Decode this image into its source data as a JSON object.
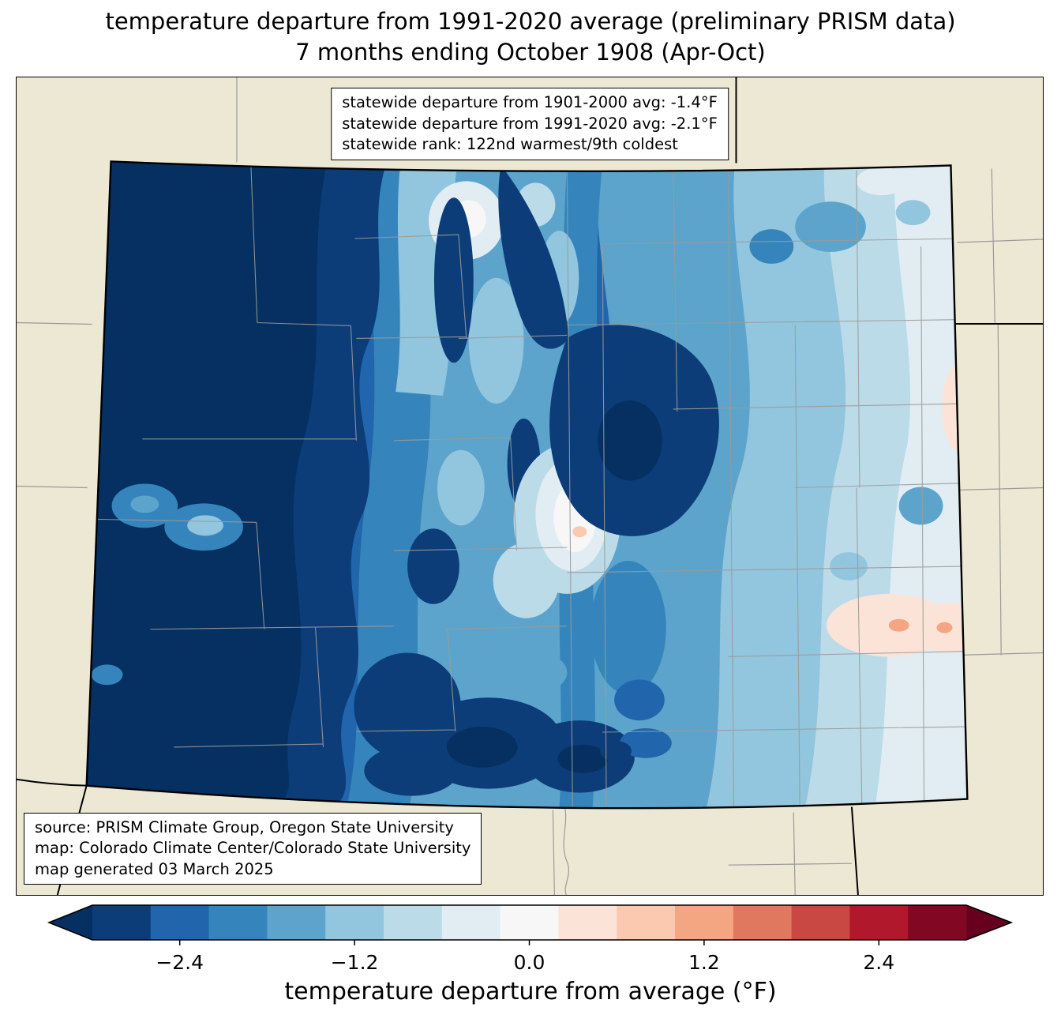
{
  "title": {
    "line1": "temperature departure from 1991-2020 average (preliminary PRISM data)",
    "line2": "7 months ending October 1908 (Apr-Oct)"
  },
  "stats_box": {
    "lines": [
      "statewide departure from 1901-2000 avg: -1.4°F",
      "statewide departure from 1991-2020 avg: -2.1°F",
      "statewide rank: 122nd warmest/9th coldest"
    ]
  },
  "source_box": {
    "lines": [
      "source: PRISM Climate Group, Oregon State University",
      "map: Colorado Climate Center/Colorado State University",
      "map generated 03 March 2025"
    ]
  },
  "colorbar": {
    "label": "temperature departure from average (°F)",
    "tick_labels": [
      "−2.4",
      "−1.2",
      "0.0",
      "1.2",
      "2.4"
    ],
    "tick_positions": [
      0.1,
      0.3,
      0.5,
      0.7,
      0.9
    ],
    "range_f": [
      -3.0,
      3.0
    ],
    "segment_colors": [
      "#0c3d79",
      "#2166ac",
      "#3585bc",
      "#5ca4cc",
      "#92c5de",
      "#bcdbe9",
      "#e1edf3",
      "#f7f7f7",
      "#fbe4d7",
      "#fac9b0",
      "#f4a582",
      "#e0775f",
      "#ca4842",
      "#b2182b",
      "#800823"
    ],
    "arrow_left_color": "#053061",
    "arrow_right_color": "#67001f"
  },
  "map": {
    "region": "Colorado",
    "background_color": "#ece8d4",
    "state_border_color": "#000000",
    "county_line_color": "#9a9a9a"
  }
}
